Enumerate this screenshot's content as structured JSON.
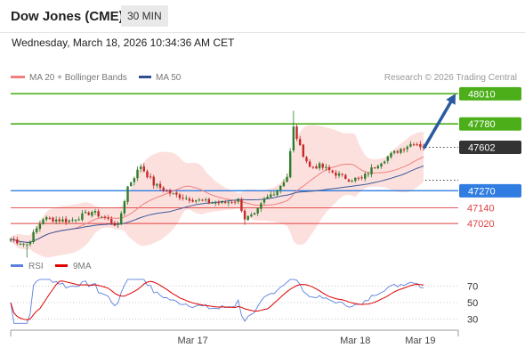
{
  "header": {
    "title": "Dow Jones (CME)",
    "timeframe": "30 MIN"
  },
  "datetime": "Wednesday, March 18, 2026 10:34:36 AM CET",
  "legend": {
    "items": [
      {
        "label": "MA 20 + Bollinger Bands",
        "color": "#f08080"
      },
      {
        "label": "MA 50",
        "color": "#2f4f8f"
      }
    ]
  },
  "credit": "Research © 2026 Trading Central",
  "rsi_legend": {
    "items": [
      {
        "label": "RSI",
        "color": "#5b7fde"
      },
      {
        "label": "9MA",
        "color": "#e00000"
      }
    ]
  },
  "chart_data": [
    {
      "type": "candlestick",
      "ylim": [
        46790,
        48060
      ],
      "levels": [
        {
          "value": 48010,
          "label": "48010",
          "style": "green-filled",
          "color": "#4caf1a"
        },
        {
          "value": 47780,
          "label": "47780",
          "style": "green-filled",
          "color": "#4caf1a"
        },
        {
          "value": 47602,
          "label": "47602",
          "style": "dark-filled",
          "color": "#333333"
        },
        {
          "value": 47270,
          "label": "47270",
          "style": "blue-filled",
          "color": "#2f7de1"
        },
        {
          "value": 47140,
          "label": "47140",
          "style": "red-text",
          "color": "#e04040"
        },
        {
          "value": 47020,
          "label": "47020",
          "style": "red-text",
          "color": "#e04040"
        }
      ],
      "dotted_levels": [
        47602,
        47350
      ],
      "x_ticks": [
        {
          "label": "Mar 17",
          "index": 56
        },
        {
          "label": "Mar 18",
          "index": 106
        },
        {
          "label": "Mar 19",
          "index": 126
        }
      ],
      "candle_count": 128,
      "anchors": [
        [
          0,
          46900
        ],
        [
          5,
          46860
        ],
        [
          10,
          47060
        ],
        [
          18,
          47040
        ],
        [
          25,
          47110
        ],
        [
          30,
          47050
        ],
        [
          33,
          47000
        ],
        [
          36,
          47300
        ],
        [
          40,
          47460
        ],
        [
          44,
          47320
        ],
        [
          50,
          47240
        ],
        [
          55,
          47210
        ],
        [
          60,
          47185
        ],
        [
          65,
          47175
        ],
        [
          70,
          47200
        ],
        [
          72,
          47060
        ],
        [
          75,
          47080
        ],
        [
          78,
          47200
        ],
        [
          82,
          47280
        ],
        [
          85,
          47380
        ],
        [
          87,
          47750
        ],
        [
          89,
          47600
        ],
        [
          92,
          47450
        ],
        [
          95,
          47460
        ],
        [
          100,
          47400
        ],
        [
          104,
          47360
        ],
        [
          108,
          47360
        ],
        [
          112,
          47460
        ],
        [
          116,
          47530
        ],
        [
          120,
          47590
        ],
        [
          124,
          47640
        ],
        [
          127,
          47602
        ]
      ],
      "forecast_arrow": {
        "from": [
          477,
          47602
        ],
        "to": [
          512,
          48010
        ],
        "color": "#2a5aa0"
      }
    },
    {
      "type": "line",
      "name": "RSI",
      "ylim": [
        20,
        80
      ],
      "y_ticks": [
        70,
        50,
        30
      ]
    }
  ]
}
